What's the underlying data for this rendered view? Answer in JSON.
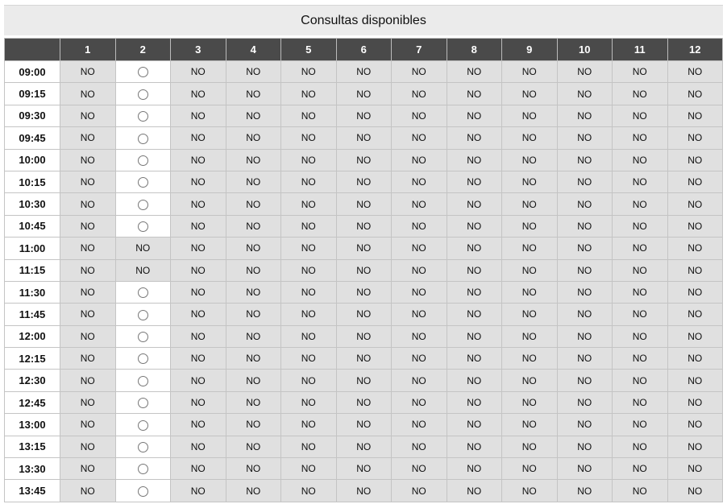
{
  "title": "Consultas disponibles",
  "columns": [
    "1",
    "2",
    "3",
    "4",
    "5",
    "6",
    "7",
    "8",
    "9",
    "10",
    "11",
    "12"
  ],
  "rows": [
    {
      "time": "09:00",
      "cells": [
        "NO",
        "",
        "NO",
        "NO",
        "NO",
        "NO",
        "NO",
        "NO",
        "NO",
        "NO",
        "NO",
        "NO"
      ]
    },
    {
      "time": "09:15",
      "cells": [
        "NO",
        "",
        "NO",
        "NO",
        "NO",
        "NO",
        "NO",
        "NO",
        "NO",
        "NO",
        "NO",
        "NO"
      ]
    },
    {
      "time": "09:30",
      "cells": [
        "NO",
        "",
        "NO",
        "NO",
        "NO",
        "NO",
        "NO",
        "NO",
        "NO",
        "NO",
        "NO",
        "NO"
      ]
    },
    {
      "time": "09:45",
      "cells": [
        "NO",
        "",
        "NO",
        "NO",
        "NO",
        "NO",
        "NO",
        "NO",
        "NO",
        "NO",
        "NO",
        "NO"
      ]
    },
    {
      "time": "10:00",
      "cells": [
        "NO",
        "",
        "NO",
        "NO",
        "NO",
        "NO",
        "NO",
        "NO",
        "NO",
        "NO",
        "NO",
        "NO"
      ]
    },
    {
      "time": "10:15",
      "cells": [
        "NO",
        "",
        "NO",
        "NO",
        "NO",
        "NO",
        "NO",
        "NO",
        "NO",
        "NO",
        "NO",
        "NO"
      ]
    },
    {
      "time": "10:30",
      "cells": [
        "NO",
        "",
        "NO",
        "NO",
        "NO",
        "NO",
        "NO",
        "NO",
        "NO",
        "NO",
        "NO",
        "NO"
      ]
    },
    {
      "time": "10:45",
      "cells": [
        "NO",
        "",
        "NO",
        "NO",
        "NO",
        "NO",
        "NO",
        "NO",
        "NO",
        "NO",
        "NO",
        "NO"
      ]
    },
    {
      "time": "11:00",
      "cells": [
        "NO",
        "NO",
        "NO",
        "NO",
        "NO",
        "NO",
        "NO",
        "NO",
        "NO",
        "NO",
        "NO",
        "NO"
      ]
    },
    {
      "time": "11:15",
      "cells": [
        "NO",
        "NO",
        "NO",
        "NO",
        "NO",
        "NO",
        "NO",
        "NO",
        "NO",
        "NO",
        "NO",
        "NO"
      ]
    },
    {
      "time": "11:30",
      "cells": [
        "NO",
        "",
        "NO",
        "NO",
        "NO",
        "NO",
        "NO",
        "NO",
        "NO",
        "NO",
        "NO",
        "NO"
      ]
    },
    {
      "time": "11:45",
      "cells": [
        "NO",
        "",
        "NO",
        "NO",
        "NO",
        "NO",
        "NO",
        "NO",
        "NO",
        "NO",
        "NO",
        "NO"
      ]
    },
    {
      "time": "12:00",
      "cells": [
        "NO",
        "",
        "NO",
        "NO",
        "NO",
        "NO",
        "NO",
        "NO",
        "NO",
        "NO",
        "NO",
        "NO"
      ]
    },
    {
      "time": "12:15",
      "cells": [
        "NO",
        "",
        "NO",
        "NO",
        "NO",
        "NO",
        "NO",
        "NO",
        "NO",
        "NO",
        "NO",
        "NO"
      ]
    },
    {
      "time": "12:30",
      "cells": [
        "NO",
        "",
        "NO",
        "NO",
        "NO",
        "NO",
        "NO",
        "NO",
        "NO",
        "NO",
        "NO",
        "NO"
      ]
    },
    {
      "time": "12:45",
      "cells": [
        "NO",
        "",
        "NO",
        "NO",
        "NO",
        "NO",
        "NO",
        "NO",
        "NO",
        "NO",
        "NO",
        "NO"
      ]
    },
    {
      "time": "13:00",
      "cells": [
        "NO",
        "",
        "NO",
        "NO",
        "NO",
        "NO",
        "NO",
        "NO",
        "NO",
        "NO",
        "NO",
        "NO"
      ]
    },
    {
      "time": "13:15",
      "cells": [
        "NO",
        "",
        "NO",
        "NO",
        "NO",
        "NO",
        "NO",
        "NO",
        "NO",
        "NO",
        "NO",
        "NO"
      ]
    },
    {
      "time": "13:30",
      "cells": [
        "NO",
        "",
        "NO",
        "NO",
        "NO",
        "NO",
        "NO",
        "NO",
        "NO",
        "NO",
        "NO",
        "NO"
      ]
    },
    {
      "time": "13:45",
      "cells": [
        "NO",
        "",
        "NO",
        "NO",
        "NO",
        "NO",
        "NO",
        "NO",
        "NO",
        "NO",
        "NO",
        "NO"
      ]
    }
  ],
  "colors": {
    "header_bg": "#4a4a4a",
    "unavailable_bg": "#e0e0e0",
    "available_bg": "#ffffff"
  }
}
